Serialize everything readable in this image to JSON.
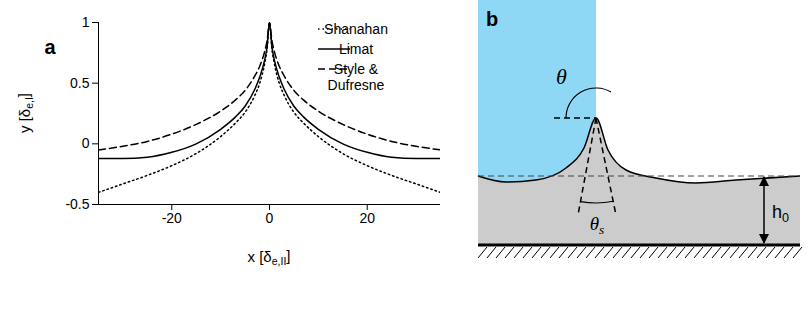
{
  "chart_data": {
    "type": "line",
    "title": "a",
    "xlabel": [
      {
        "text": "x [δ"
      },
      {
        "text": "e,II",
        "sub": true
      },
      {
        "text": "]"
      }
    ],
    "ylabel": [
      {
        "text": "y [δ"
      },
      {
        "text": "e,I",
        "sub": true
      },
      {
        "text": "]"
      }
    ],
    "x": [
      -35,
      -30,
      -25,
      -20,
      -15,
      -10,
      -7,
      -5,
      -3,
      -2,
      -1,
      -0.5,
      0,
      0.5,
      1,
      2,
      3,
      5,
      7,
      10,
      15,
      20,
      25,
      30,
      35
    ],
    "series": [
      {
        "name": "Shanahan",
        "color": "#000000",
        "line_style": "dotted",
        "values": [
          -0.4,
          -0.33,
          -0.26,
          -0.18,
          -0.08,
          0.06,
          0.17,
          0.26,
          0.4,
          0.5,
          0.66,
          0.78,
          1,
          0.78,
          0.66,
          0.5,
          0.4,
          0.26,
          0.17,
          0.06,
          -0.08,
          -0.18,
          -0.26,
          -0.33,
          -0.4
        ]
      },
      {
        "name": "Limat",
        "color": "#000000",
        "line_style": "solid",
        "values": [
          -0.12,
          -0.12,
          -0.11,
          -0.07,
          0.0,
          0.12,
          0.22,
          0.31,
          0.45,
          0.55,
          0.69,
          0.8,
          1,
          0.8,
          0.69,
          0.55,
          0.45,
          0.31,
          0.22,
          0.12,
          0.0,
          -0.07,
          -0.11,
          -0.12,
          -0.12
        ]
      },
      {
        "name": "Style & Dufresne",
        "color": "#000000",
        "line_style": "dashed",
        "values": [
          -0.05,
          -0.02,
          0.02,
          0.08,
          0.16,
          0.27,
          0.36,
          0.44,
          0.56,
          0.64,
          0.76,
          0.85,
          1,
          0.85,
          0.76,
          0.64,
          0.56,
          0.44,
          0.36,
          0.27,
          0.16,
          0.08,
          0.02,
          -0.02,
          -0.05
        ]
      }
    ],
    "xlim": [
      -35,
      35
    ],
    "xticks": [
      -20,
      0,
      20
    ],
    "ylim": [
      -0.5,
      1
    ],
    "yticks": [
      -0.5,
      0,
      0.5,
      1
    ],
    "grid": false,
    "legend": "top-right"
  },
  "diagram": {
    "panel": "b",
    "labels": {
      "theta": [
        {
          "text": "θ"
        }
      ],
      "theta_s": [
        {
          "text": "θ"
        },
        {
          "text": "s",
          "sub": true
        }
      ],
      "h0": [
        {
          "text": "h"
        },
        {
          "text": "0",
          "sub": true
        }
      ]
    }
  }
}
